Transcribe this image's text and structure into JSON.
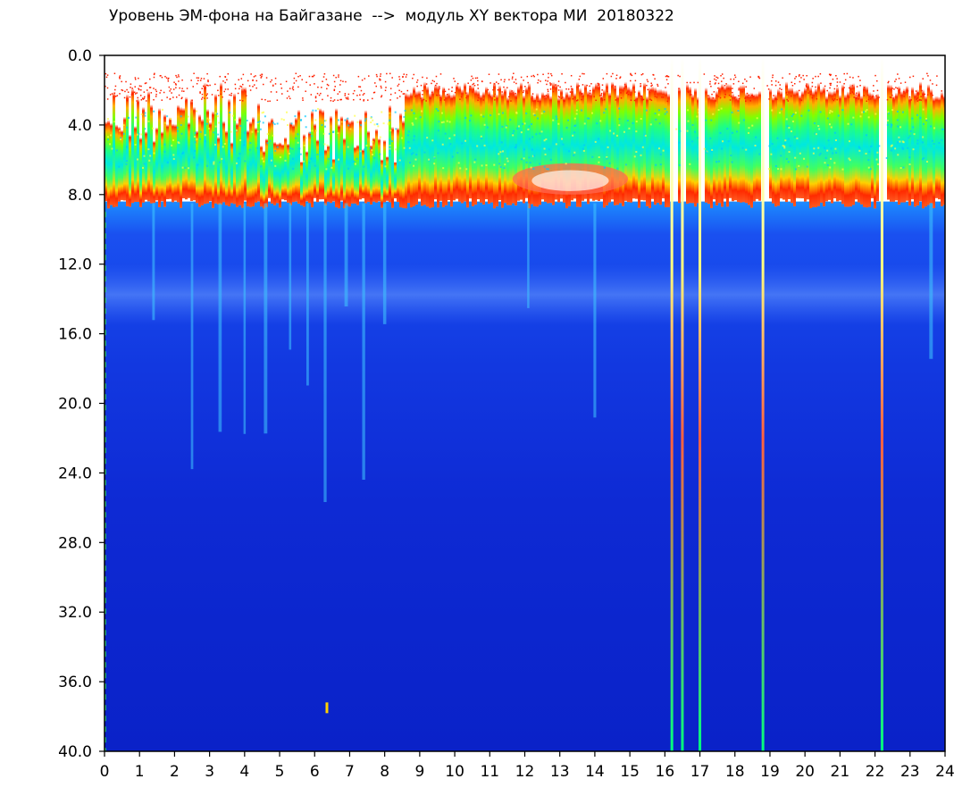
{
  "chart_data": {
    "type": "heatmap",
    "title": "Уровень ЭМ-фона на Байгазане  -->  модуль XY вектора МИ  20180322",
    "xlabel": "",
    "ylabel": "",
    "x_ticks": [
      "0",
      "1",
      "2",
      "3",
      "4",
      "5",
      "6",
      "7",
      "8",
      "9",
      "10",
      "11",
      "12",
      "13",
      "14",
      "15",
      "16",
      "17",
      "18",
      "19",
      "20",
      "21",
      "22",
      "23",
      "24"
    ],
    "y_ticks": [
      "0.0",
      "4.0",
      "8.0",
      "12.0",
      "16.0",
      "20.0",
      "24.0",
      "28.0",
      "32.0",
      "36.0",
      "40.0"
    ],
    "xlim": [
      0,
      24
    ],
    "ylim": [
      0,
      40
    ],
    "y_inverted": true,
    "grid": false,
    "colormap": [
      "#0000c8",
      "#0050ff",
      "#00e0ff",
      "#00ff40",
      "#ffff00",
      "#ff2000",
      "#ffffff"
    ],
    "background_band": {
      "y_range": [
        10,
        40
      ],
      "color": "#0a22c8"
    },
    "upper_band": {
      "y_range": [
        1.5,
        8.5
      ],
      "noise_band_y_range": [
        12,
        15.5
      ],
      "description_level": "high intensity band between ~1.5 and ~8.5 with red edges and green/cyan core"
    },
    "vertical_streaks_hours": [
      16.2,
      16.5,
      17.0,
      18.8,
      22.2
    ],
    "faint_streaks_hours": [
      1.4,
      2.5,
      3.3,
      4.0,
      4.6,
      5.3,
      5.8,
      6.3,
      6.9,
      7.4,
      8.0,
      12.1,
      14.0,
      23.6
    ],
    "gaps_upper_band_hours": [
      [
        16.1,
        16.3
      ],
      [
        16.45,
        16.6
      ],
      [
        16.95,
        17.1
      ],
      [
        18.7,
        18.9
      ],
      [
        22.1,
        22.3
      ]
    ],
    "spot": {
      "x": 6.35,
      "y": 37.5
    }
  }
}
